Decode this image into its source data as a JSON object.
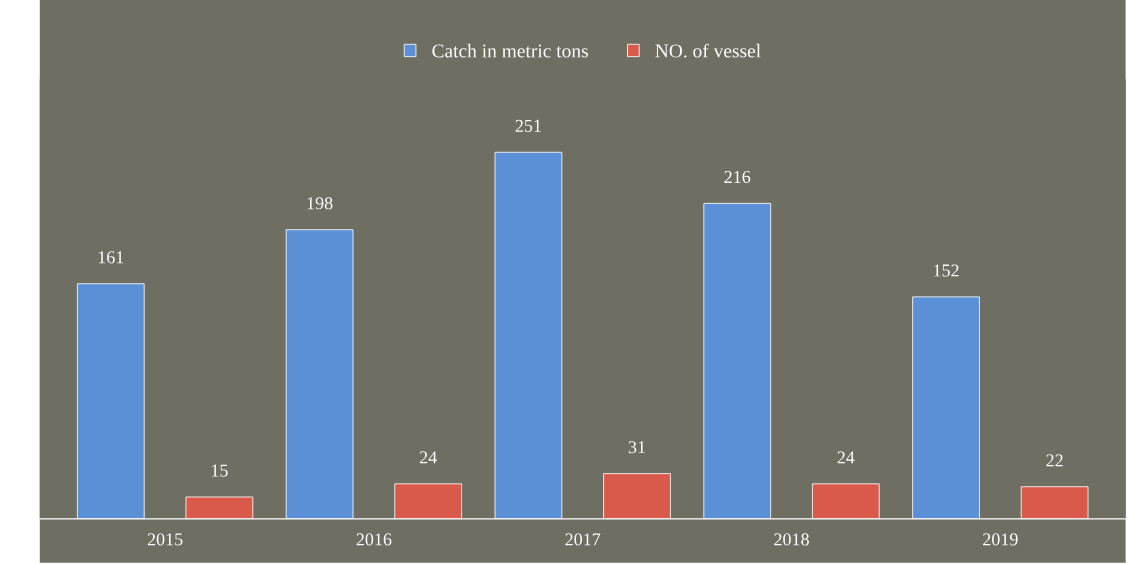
{
  "chart_data": {
    "type": "bar",
    "categories": [
      "2015",
      "2016",
      "2017",
      "2018",
      "2019"
    ],
    "series": [
      {
        "name": "Catch in metric tons",
        "color": "#5b8fd6",
        "values": [
          161,
          198,
          251,
          216,
          152
        ]
      },
      {
        "name": "NO. of vessel",
        "color": "#d9594a",
        "values": [
          15,
          24,
          31,
          24,
          22
        ]
      }
    ],
    "data_labels": true,
    "legend": "top"
  }
}
